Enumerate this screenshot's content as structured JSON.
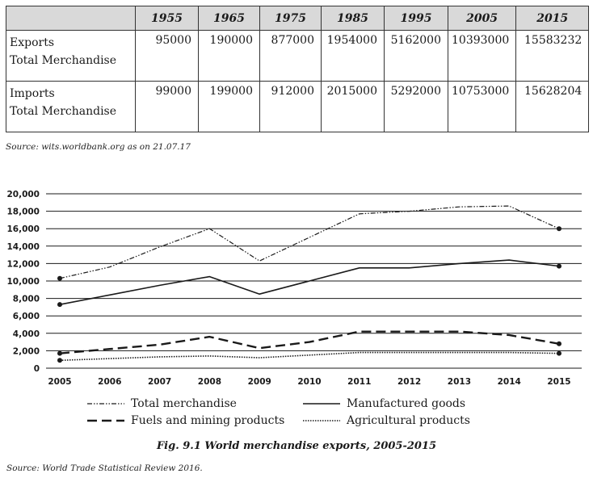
{
  "table": {
    "years": [
      "1955",
      "1965",
      "1975",
      "1985",
      "1995",
      "2005",
      "2015"
    ],
    "rows": [
      {
        "label_line1": "Exports",
        "label_line2": "Total Merchandise",
        "values": [
          "95000",
          "190000",
          "877000",
          "1954000",
          "5162000",
          "10393000",
          "15583232"
        ]
      },
      {
        "label_line1": "Imports",
        "label_line2": "Total Merchandise",
        "values": [
          "99000",
          "199000",
          "912000",
          "2015000",
          "5292000",
          "10753000",
          "15628204"
        ]
      }
    ],
    "source": "Source: wits.worldbank.org as on 21.07.17"
  },
  "chart_data": {
    "type": "line",
    "x": [
      "2005",
      "2006",
      "2007",
      "2008",
      "2009",
      "2010",
      "2011",
      "2012",
      "2013",
      "2014",
      "2015"
    ],
    "ylim": [
      0,
      20000
    ],
    "yticks": [
      0,
      2000,
      4000,
      6000,
      8000,
      10000,
      12000,
      14000,
      16000,
      18000,
      20000
    ],
    "ytick_labels": [
      "0",
      "2,000",
      "4,000",
      "6,000",
      "8,000",
      "10,000",
      "12,000",
      "14,000",
      "16,000",
      "18,000",
      "20,000"
    ],
    "grid": "horizontal",
    "legend_position": "bottom",
    "series": [
      {
        "name": "Total merchandise",
        "style": "dash-dot-dot",
        "values": [
          10300,
          11600,
          13900,
          16000,
          12300,
          15000,
          17700,
          18000,
          18500,
          18600,
          16000
        ]
      },
      {
        "name": "Manufactured goods",
        "style": "solid",
        "values": [
          7300,
          8400,
          9500,
          10500,
          8500,
          10000,
          11500,
          11500,
          12000,
          12400,
          11700
        ]
      },
      {
        "name": "Fuels and mining products",
        "style": "long-dash",
        "values": [
          1700,
          2200,
          2700,
          3600,
          2300,
          3000,
          4200,
          4200,
          4200,
          3800,
          2800
        ]
      },
      {
        "name": "Agricultural products",
        "style": "dotted",
        "values": [
          900,
          1100,
          1300,
          1400,
          1200,
          1500,
          1800,
          1800,
          1800,
          1800,
          1700
        ]
      }
    ],
    "title": "Fig. 9.1 World merchandise exports, 2005-2015",
    "source": "Source: World Trade Statistical Review 2016."
  }
}
